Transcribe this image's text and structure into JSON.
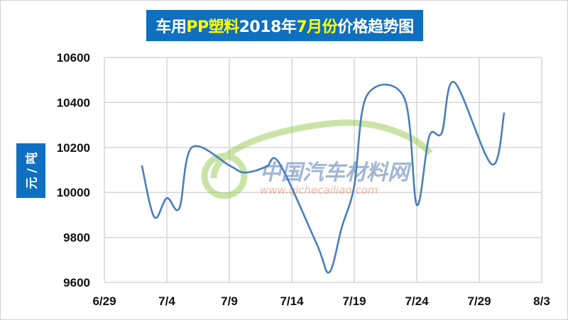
{
  "chart_data": {
    "type": "line",
    "title_parts": [
      {
        "text": "车用",
        "highlight": false
      },
      {
        "text": "PP塑料",
        "highlight": true
      },
      {
        "text": "2018年",
        "highlight": false
      },
      {
        "text": "7月份",
        "highlight": true
      },
      {
        "text": "价格趋势图",
        "highlight": false
      }
    ],
    "ylabel": "元 / 吨",
    "xlabel": "",
    "x_ticks": [
      "6/29",
      "7/4",
      "7/9",
      "7/14",
      "7/19",
      "7/24",
      "7/29",
      "8/3"
    ],
    "y_ticks": [
      "9600",
      "9800",
      "10000",
      "10200",
      "10400",
      "10600"
    ],
    "ylim": [
      9600,
      10600
    ],
    "xlim": [
      "2018-06-29",
      "2018-08-03"
    ],
    "grid": true,
    "legend": "none",
    "smooth": true,
    "series": [
      {
        "color": "#4a7ebb",
        "points": [
          {
            "x": "2018-07-02",
            "y": 10120
          },
          {
            "x": "2018-07-03",
            "y": 9890
          },
          {
            "x": "2018-07-04",
            "y": 9975
          },
          {
            "x": "2018-07-05",
            "y": 9930
          },
          {
            "x": "2018-07-06",
            "y": 10200
          },
          {
            "x": "2018-07-09",
            "y": 10120
          },
          {
            "x": "2018-07-10",
            "y": 10090
          },
          {
            "x": "2018-07-11",
            "y": 10095
          },
          {
            "x": "2018-07-12",
            "y": 10115
          },
          {
            "x": "2018-07-13",
            "y": 10130
          },
          {
            "x": "2018-07-16",
            "y": 9770
          },
          {
            "x": "2018-07-17",
            "y": 9645
          },
          {
            "x": "2018-07-18",
            "y": 9845
          },
          {
            "x": "2018-07-19",
            "y": 10030
          },
          {
            "x": "2018-07-20",
            "y": 10430
          },
          {
            "x": "2018-07-23",
            "y": 10420
          },
          {
            "x": "2018-07-24",
            "y": 9945
          },
          {
            "x": "2018-07-25",
            "y": 10250
          },
          {
            "x": "2018-07-26",
            "y": 10265
          },
          {
            "x": "2018-07-27",
            "y": 10490
          },
          {
            "x": "2018-07-30",
            "y": 10125
          },
          {
            "x": "2018-07-31",
            "y": 10355
          }
        ]
      }
    ],
    "title_bg": "#0f6fc0",
    "title_highlight_color": "#ffff00"
  },
  "watermark": {
    "name": "中国汽车材料网",
    "url": "www.qichecailiao.com"
  }
}
